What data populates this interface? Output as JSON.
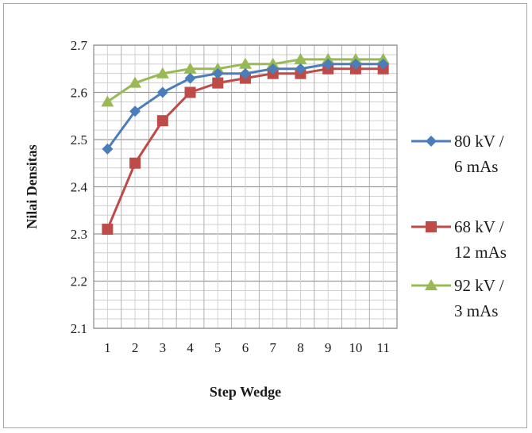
{
  "chart_data": {
    "type": "line",
    "title": "",
    "xlabel": "Step Wedge",
    "ylabel": "Nilai Densitas",
    "categories": [
      "1",
      "2",
      "3",
      "4",
      "5",
      "6",
      "7",
      "8",
      "9",
      "10",
      "11"
    ],
    "ylim": [
      2.1,
      2.7
    ],
    "yticks": [
      "2.1",
      "2.2",
      "2.3",
      "2.4",
      "2.5",
      "2.6",
      "2.7"
    ],
    "grid": true,
    "legend_position": "right",
    "series": [
      {
        "name_lines": [
          "80 kV /",
          "6 mAs"
        ],
        "color": "#4a7ebb",
        "marker": "diamond",
        "values": [
          2.48,
          2.56,
          2.6,
          2.63,
          2.64,
          2.64,
          2.65,
          2.65,
          2.66,
          2.66,
          2.66
        ]
      },
      {
        "name_lines": [
          "68 kV /",
          "12 mAs"
        ],
        "color": "#be4b48",
        "marker": "square",
        "values": [
          2.31,
          2.45,
          2.54,
          2.6,
          2.62,
          2.63,
          2.64,
          2.64,
          2.65,
          2.65,
          2.65
        ]
      },
      {
        "name_lines": [
          "92 kV /",
          "3 mAs"
        ],
        "color": "#98b954",
        "marker": "triangle",
        "values": [
          2.58,
          2.62,
          2.64,
          2.65,
          2.65,
          2.66,
          2.66,
          2.67,
          2.67,
          2.67,
          2.67
        ]
      }
    ]
  }
}
